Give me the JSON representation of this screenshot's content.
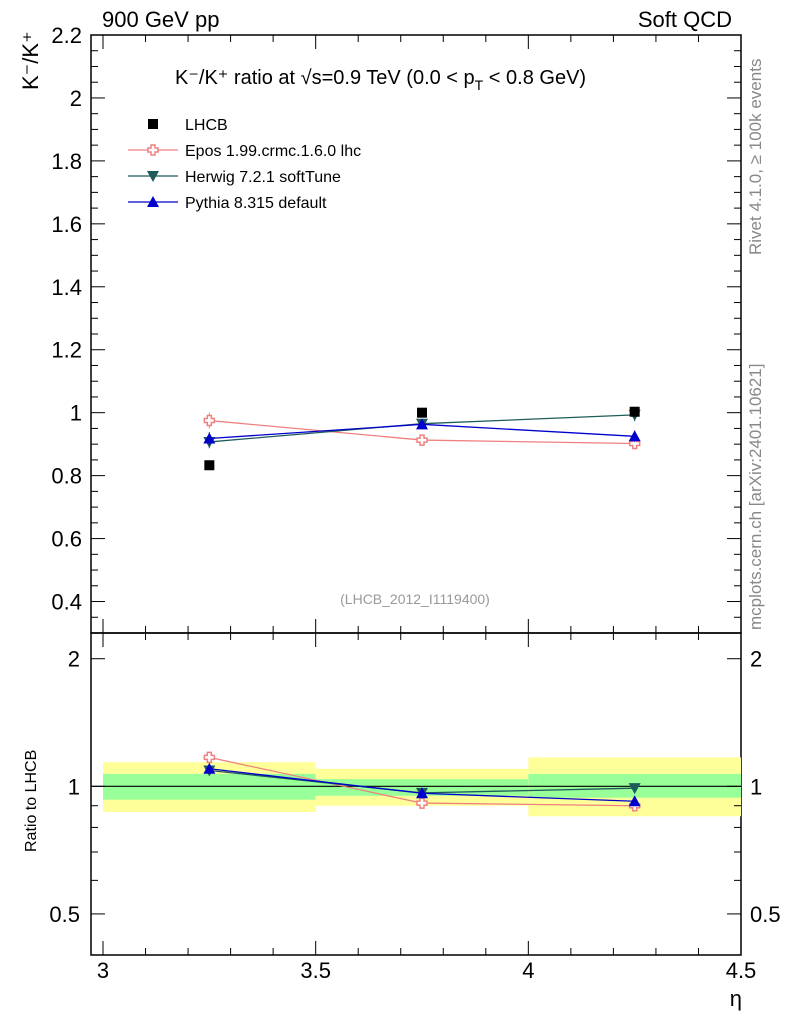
{
  "header": {
    "left": "900 GeV pp",
    "right": "Soft QCD"
  },
  "side_text": {
    "upper": "Rivet 4.1.0, ≥ 100k events",
    "lower": "mcplots.cern.ch [arXiv:2401.10621]"
  },
  "chart_data": {
    "type": "line",
    "title": {
      "main": "K⁻/K⁺ ratio at √s=0.9 TeV (0.0 < p",
      "sub": "T",
      "tail": " < 0.8 GeV)"
    },
    "reference": "(LHCB_2012_I1119400)",
    "ylabel": "K⁻/K⁺",
    "xlabel": "η",
    "xlim": [
      3.0,
      4.5
    ],
    "ylim": [
      0.3,
      2.2
    ],
    "x_ticks": [
      "3",
      "3.5",
      "4",
      "4.5"
    ],
    "y_ticks": [
      "0.4",
      "0.6",
      "0.8",
      "1",
      "1.2",
      "1.4",
      "1.6",
      "1.8",
      "2",
      "2.2"
    ],
    "bins": [
      [
        3.0,
        3.5
      ],
      [
        3.5,
        4.0
      ],
      [
        4.0,
        4.5
      ]
    ],
    "x": [
      3.25,
      3.75,
      4.25
    ],
    "data": {
      "name": "LHCB",
      "values": [
        0.833,
        1.0,
        1.003
      ]
    },
    "series": [
      {
        "name": "Epos 1.99.crmc.1.6.0 lhc",
        "color": "#f08080",
        "marker": "open-cross",
        "values": [
          0.975,
          0.913,
          0.902
        ],
        "errors": [
          0.025,
          0.015,
          0.018
        ]
      },
      {
        "name": "Herwig 7.2.1 softTune",
        "color": "#1f5b5b",
        "marker": "triangle-down",
        "values": [
          0.907,
          0.965,
          0.993
        ],
        "errors": [
          0.02,
          0.012,
          0.02
        ]
      },
      {
        "name": "Pythia 8.315 default",
        "color": "#0000cc",
        "marker": "triangle-up",
        "values": [
          0.918,
          0.963,
          0.925
        ],
        "errors": [
          0.02,
          0.012,
          0.018
        ]
      }
    ],
    "ratio_panel": {
      "ylabel": "Ratio to LHCB",
      "y_ticks": [
        "0.5",
        "1",
        "2"
      ],
      "ylim": [
        0.4,
        2.3
      ],
      "band_green": [
        [
          0.93,
          1.07
        ],
        [
          0.95,
          1.04
        ],
        [
          0.94,
          1.07
        ]
      ],
      "band_yellow": [
        [
          0.87,
          1.14
        ],
        [
          0.9,
          1.1
        ],
        [
          0.85,
          1.17
        ]
      ],
      "ratios": [
        {
          "name": "Epos 1.99.crmc.1.6.0 lhc",
          "values": [
            1.17,
            0.913,
            0.9
          ]
        },
        {
          "name": "Herwig 7.2.1 softTune",
          "values": [
            1.09,
            0.965,
            0.99
          ]
        },
        {
          "name": "Pythia 8.315 default",
          "values": [
            1.1,
            0.963,
            0.922
          ]
        }
      ]
    }
  }
}
